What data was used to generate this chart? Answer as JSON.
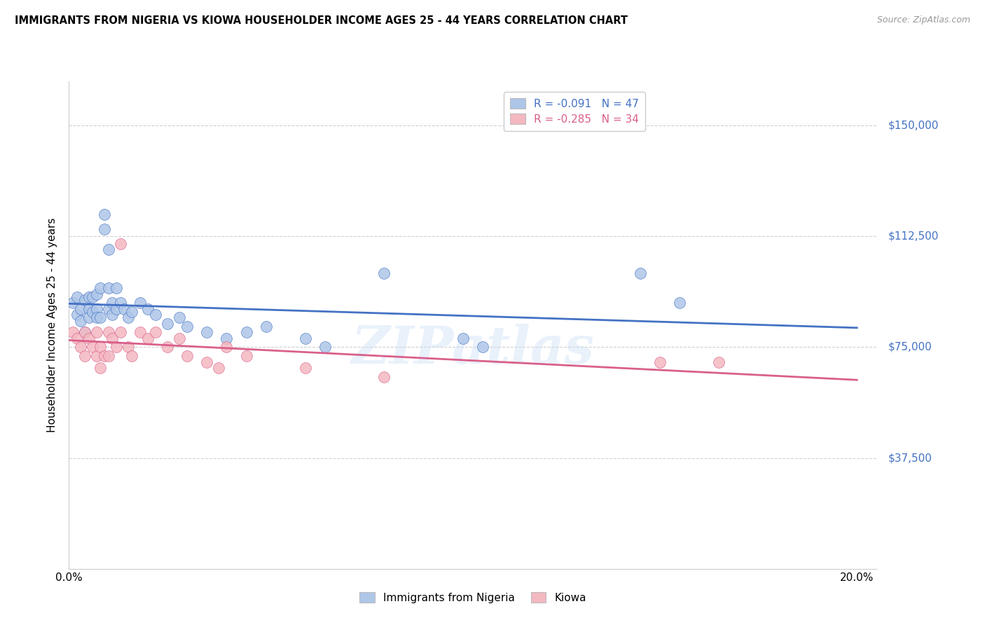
{
  "title": "IMMIGRANTS FROM NIGERIA VS KIOWA HOUSEHOLDER INCOME AGES 25 - 44 YEARS CORRELATION CHART",
  "source": "Source: ZipAtlas.com",
  "ylabel": "Householder Income Ages 25 - 44 years",
  "xlim": [
    0.0,
    0.205
  ],
  "ylim": [
    0,
    165000
  ],
  "yticks": [
    37500,
    75000,
    112500,
    150000
  ],
  "ytick_labels": [
    "$37,500",
    "$75,000",
    "$112,500",
    "$150,000"
  ],
  "xticks": [
    0.0,
    0.05,
    0.1,
    0.15,
    0.2
  ],
  "xtick_labels": [
    "0.0%",
    "",
    "",
    "",
    "20.0%"
  ],
  "legend_r_nigeria": "-0.091",
  "legend_n_nigeria": "47",
  "legend_r_kiowa": "-0.285",
  "legend_n_kiowa": "34",
  "nigeria_color": "#aec6e8",
  "kiowa_color": "#f4b8c1",
  "nigeria_line_color": "#4472c4",
  "kiowa_line_color": "#d9608a",
  "watermark": "ZIPatlas",
  "nigeria_x": [
    0.001,
    0.002,
    0.002,
    0.003,
    0.003,
    0.004,
    0.004,
    0.005,
    0.005,
    0.005,
    0.006,
    0.006,
    0.007,
    0.007,
    0.007,
    0.008,
    0.008,
    0.009,
    0.009,
    0.01,
    0.01,
    0.01,
    0.011,
    0.011,
    0.012,
    0.012,
    0.013,
    0.014,
    0.015,
    0.016,
    0.018,
    0.02,
    0.022,
    0.025,
    0.028,
    0.03,
    0.035,
    0.04,
    0.045,
    0.05,
    0.06,
    0.065,
    0.08,
    0.1,
    0.105,
    0.145,
    0.155
  ],
  "nigeria_y": [
    90000,
    92000,
    86000,
    88000,
    84000,
    91000,
    80000,
    92000,
    88000,
    85000,
    92000,
    87000,
    93000,
    88000,
    85000,
    95000,
    85000,
    115000,
    120000,
    108000,
    95000,
    88000,
    90000,
    86000,
    95000,
    88000,
    90000,
    88000,
    85000,
    87000,
    90000,
    88000,
    86000,
    83000,
    85000,
    82000,
    80000,
    78000,
    80000,
    82000,
    78000,
    75000,
    100000,
    78000,
    75000,
    100000,
    90000
  ],
  "kiowa_x": [
    0.001,
    0.002,
    0.003,
    0.004,
    0.004,
    0.005,
    0.006,
    0.007,
    0.007,
    0.008,
    0.008,
    0.009,
    0.01,
    0.01,
    0.011,
    0.012,
    0.013,
    0.013,
    0.015,
    0.016,
    0.018,
    0.02,
    0.022,
    0.025,
    0.028,
    0.03,
    0.035,
    0.038,
    0.04,
    0.045,
    0.06,
    0.08,
    0.15,
    0.165
  ],
  "kiowa_y": [
    80000,
    78000,
    75000,
    80000,
    72000,
    78000,
    75000,
    80000,
    72000,
    75000,
    68000,
    72000,
    80000,
    72000,
    78000,
    75000,
    110000,
    80000,
    75000,
    72000,
    80000,
    78000,
    80000,
    75000,
    78000,
    72000,
    70000,
    68000,
    75000,
    72000,
    68000,
    65000,
    70000,
    70000
  ]
}
